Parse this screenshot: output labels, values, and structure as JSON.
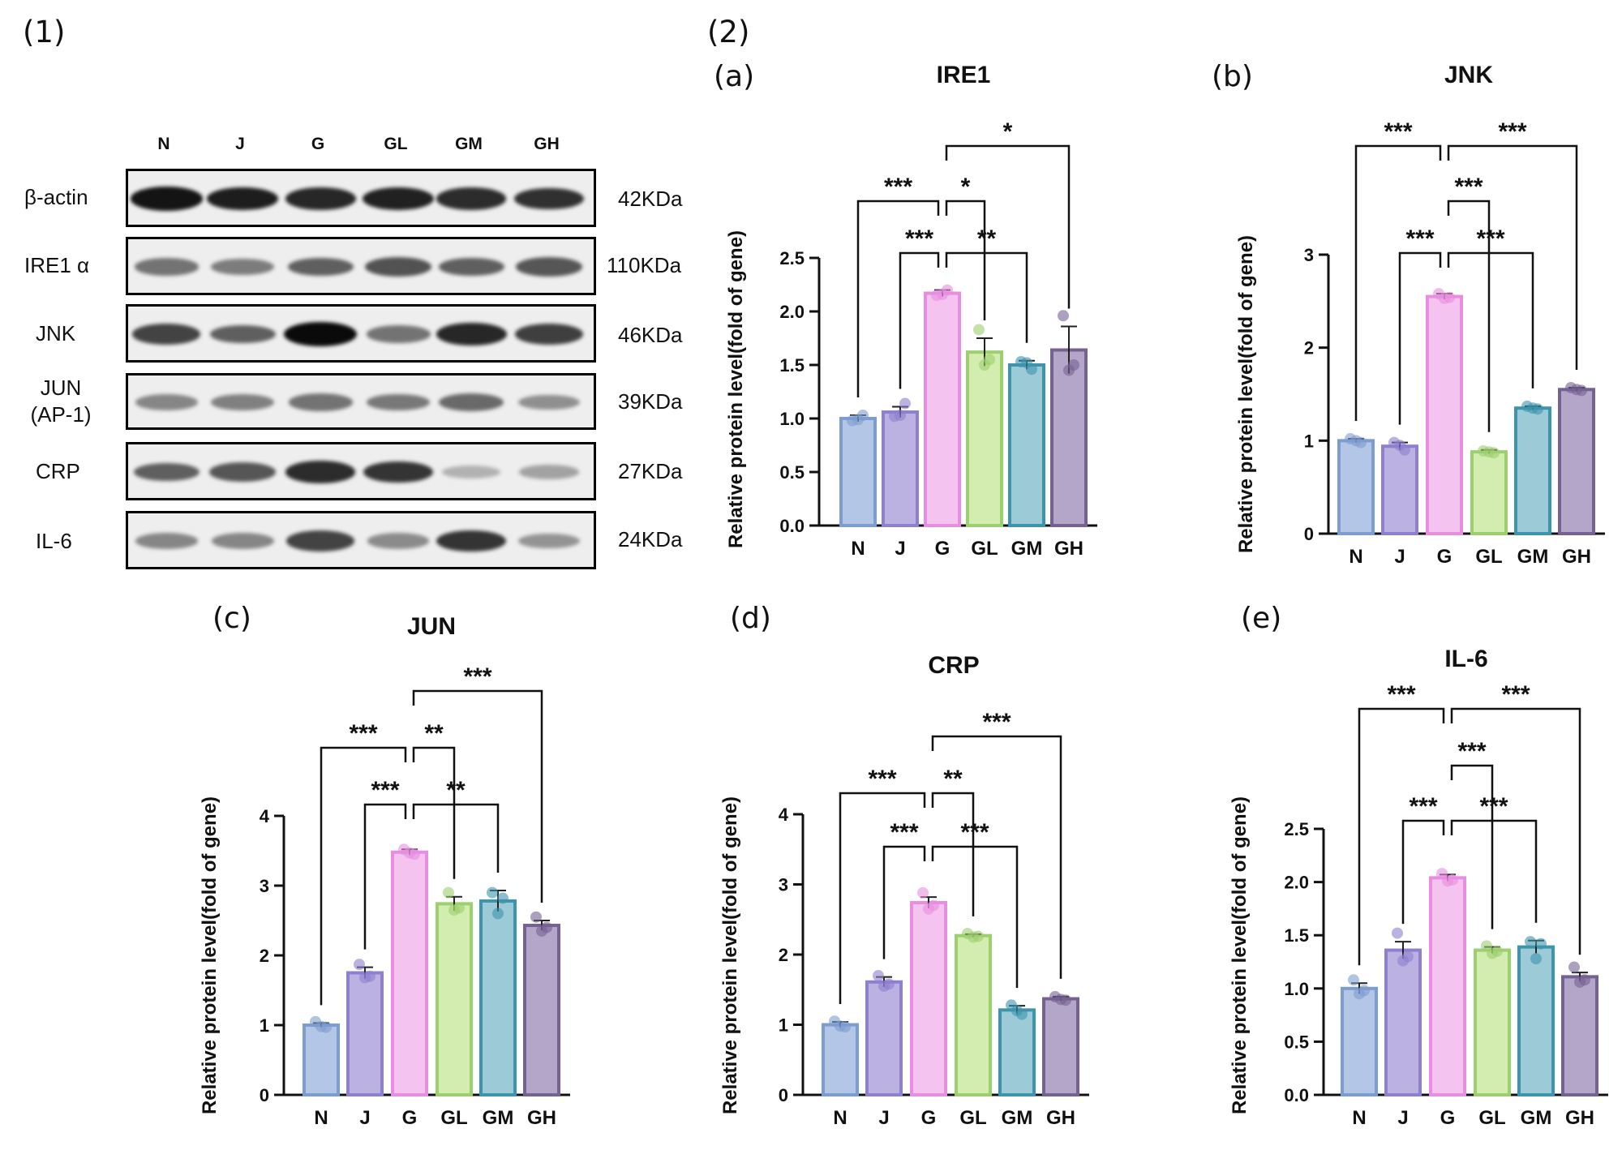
{
  "figure_labels": {
    "part1": "(1)",
    "part2": "(2)"
  },
  "western_blot": {
    "lanes": [
      "N",
      "J",
      "G",
      "GL",
      "GM",
      "GH"
    ],
    "rows": [
      {
        "label": "β-actin",
        "kda": "42KDa",
        "intensity": [
          0.95,
          0.9,
          0.85,
          0.88,
          0.82,
          0.8
        ]
      },
      {
        "label": "IRE1 α",
        "kda": "110KDa",
        "intensity": [
          0.45,
          0.4,
          0.55,
          0.62,
          0.55,
          0.6
        ]
      },
      {
        "label": "JNK",
        "kda": "46KDa",
        "intensity": [
          0.7,
          0.55,
          1.0,
          0.45,
          0.85,
          0.72
        ]
      },
      {
        "label": "JUN\n(AP-1)",
        "kda": "39KDa",
        "intensity": [
          0.35,
          0.38,
          0.45,
          0.42,
          0.5,
          0.3
        ]
      },
      {
        "label": "CRP",
        "kda": "27KDa",
        "intensity": [
          0.55,
          0.6,
          0.82,
          0.78,
          0.12,
          0.2
        ]
      },
      {
        "label": "IL-6",
        "kda": "24KDa",
        "intensity": [
          0.35,
          0.35,
          0.7,
          0.32,
          0.78,
          0.28
        ]
      }
    ]
  },
  "chart_data": [
    {
      "panel": "(a)",
      "type": "bar",
      "title": "IRE1",
      "ylabel": "Relative protein level(fold of gene)",
      "categories": [
        "N",
        "J",
        "G",
        "GL",
        "GM",
        "GH"
      ],
      "values": [
        1.0,
        1.06,
        2.17,
        1.62,
        1.5,
        1.64
      ],
      "errors": [
        0.03,
        0.05,
        0.03,
        0.13,
        0.04,
        0.22
      ],
      "points": [
        [
          0.98,
          1.03,
          0.99
        ],
        [
          1.02,
          1.14,
          1.03
        ],
        [
          2.15,
          2.2,
          2.16
        ],
        [
          1.83,
          1.55,
          1.5
        ],
        [
          1.53,
          1.46,
          1.52
        ],
        [
          1.96,
          1.5,
          1.45
        ]
      ],
      "ylim": [
        0,
        2.5
      ],
      "yticks": [
        "0.0",
        "0.5",
        "1.0",
        "1.5",
        "2.0",
        "2.5"
      ],
      "significance": [
        {
          "from": 2,
          "to": 5,
          "label": "*"
        },
        {
          "from": 0,
          "to": 2,
          "label": "***"
        },
        {
          "from": 2,
          "to": 3,
          "label": "*"
        },
        {
          "from": 1,
          "to": 2,
          "label": "***"
        },
        {
          "from": 2,
          "to": 4,
          "label": "**"
        }
      ],
      "colors": [
        "#b3c6e6",
        "#bcb2e2",
        "#f4c3ef",
        "#d3edb0",
        "#9ccad6",
        "#b3a6c9"
      ],
      "edges": [
        "#7d9ccf",
        "#8f7fcf",
        "#e78ee0",
        "#9ccf6e",
        "#3d94ad",
        "#766193"
      ]
    },
    {
      "panel": "(b)",
      "type": "bar",
      "title": "JNK",
      "ylabel": "Relative protein level(fold of gene)",
      "categories": [
        "N",
        "J",
        "G",
        "GL",
        "GM",
        "GH"
      ],
      "values": [
        1.0,
        0.94,
        2.55,
        0.88,
        1.35,
        1.55
      ],
      "errors": [
        0.02,
        0.04,
        0.03,
        0.02,
        0.02,
        0.02
      ],
      "points": [
        [
          1.02,
          0.98,
          1.0
        ],
        [
          0.98,
          0.9,
          0.95
        ],
        [
          2.58,
          2.54,
          2.53
        ],
        [
          0.89,
          0.87,
          0.88
        ],
        [
          1.37,
          1.34,
          1.35
        ],
        [
          1.57,
          1.54,
          1.55
        ]
      ],
      "ylim": [
        0,
        3
      ],
      "yticks": [
        "0",
        "1",
        "2",
        "3"
      ],
      "significance": [
        {
          "from": 0,
          "to": 2,
          "label": "***"
        },
        {
          "from": 2,
          "to": 5,
          "label": "***"
        },
        {
          "from": 2,
          "to": 3,
          "label": "***"
        },
        {
          "from": 1,
          "to": 2,
          "label": "***"
        },
        {
          "from": 2,
          "to": 4,
          "label": "***"
        }
      ],
      "colors": [
        "#b3c6e6",
        "#bcb2e2",
        "#f4c3ef",
        "#d3edb0",
        "#9ccad6",
        "#b3a6c9"
      ],
      "edges": [
        "#7d9ccf",
        "#8f7fcf",
        "#e78ee0",
        "#9ccf6e",
        "#3d94ad",
        "#766193"
      ]
    },
    {
      "panel": "(c)",
      "type": "bar",
      "title": "JUN",
      "ylabel": "Relative protein level(fold of gene)",
      "categories": [
        "N",
        "J",
        "G",
        "GL",
        "GM",
        "GH"
      ],
      "values": [
        1.0,
        1.75,
        3.48,
        2.74,
        2.78,
        2.43
      ],
      "errors": [
        0.03,
        0.08,
        0.04,
        0.1,
        0.15,
        0.07
      ],
      "points": [
        [
          1.05,
          0.97,
          0.98
        ],
        [
          1.87,
          1.7,
          1.68
        ],
        [
          3.52,
          3.45,
          3.47
        ],
        [
          2.9,
          2.68,
          2.65
        ],
        [
          2.9,
          2.82,
          2.6
        ],
        [
          2.55,
          2.4,
          2.35
        ]
      ],
      "ylim": [
        0,
        4
      ],
      "yticks": [
        "0",
        "1",
        "2",
        "3",
        "4"
      ],
      "significance": [
        {
          "from": 2,
          "to": 5,
          "label": "***"
        },
        {
          "from": 0,
          "to": 2,
          "label": "***"
        },
        {
          "from": 2,
          "to": 3,
          "label": "**"
        },
        {
          "from": 1,
          "to": 2,
          "label": "***"
        },
        {
          "from": 2,
          "to": 4,
          "label": "**"
        }
      ],
      "colors": [
        "#b3c6e6",
        "#bcb2e2",
        "#f4c3ef",
        "#d3edb0",
        "#9ccad6",
        "#b3a6c9"
      ],
      "edges": [
        "#7d9ccf",
        "#8f7fcf",
        "#e78ee0",
        "#9ccf6e",
        "#3d94ad",
        "#766193"
      ]
    },
    {
      "panel": "(d)",
      "type": "bar",
      "title": "CRP",
      "ylabel": "Relative protein level(fold of gene)",
      "categories": [
        "N",
        "J",
        "G",
        "GL",
        "GM",
        "GH"
      ],
      "values": [
        1.0,
        1.61,
        2.74,
        2.27,
        1.21,
        1.37
      ],
      "errors": [
        0.04,
        0.07,
        0.08,
        0.02,
        0.06,
        0.03
      ],
      "points": [
        [
          1.05,
          0.97,
          0.98
        ],
        [
          1.7,
          1.58,
          1.55
        ],
        [
          2.88,
          2.7,
          2.65
        ],
        [
          2.3,
          2.26,
          2.25
        ],
        [
          1.28,
          1.15,
          1.2
        ],
        [
          1.4,
          1.35,
          1.36
        ]
      ],
      "ylim": [
        0,
        4
      ],
      "yticks": [
        "0",
        "1",
        "2",
        "3",
        "4"
      ],
      "significance": [
        {
          "from": 2,
          "to": 5,
          "label": "***"
        },
        {
          "from": 0,
          "to": 2,
          "label": "***"
        },
        {
          "from": 2,
          "to": 3,
          "label": "**"
        },
        {
          "from": 1,
          "to": 2,
          "label": "***"
        },
        {
          "from": 2,
          "to": 4,
          "label": "***"
        }
      ],
      "colors": [
        "#b3c6e6",
        "#bcb2e2",
        "#f4c3ef",
        "#d3edb0",
        "#9ccad6",
        "#b3a6c9"
      ],
      "edges": [
        "#7d9ccf",
        "#8f7fcf",
        "#e78ee0",
        "#9ccf6e",
        "#3d94ad",
        "#766193"
      ]
    },
    {
      "panel": "(e)",
      "type": "bar",
      "title": "IL-6",
      "ylabel": "Relative protein level(fold of gene)",
      "categories": [
        "N",
        "J",
        "G",
        "GL",
        "GM",
        "GH"
      ],
      "values": [
        1.0,
        1.36,
        2.04,
        1.36,
        1.39,
        1.11
      ],
      "errors": [
        0.05,
        0.08,
        0.03,
        0.03,
        0.06,
        0.04
      ],
      "points": [
        [
          1.08,
          0.98,
          0.95
        ],
        [
          1.52,
          1.3,
          1.26
        ],
        [
          2.08,
          2.02,
          2.01
        ],
        [
          1.4,
          1.35,
          1.33
        ],
        [
          1.44,
          1.42,
          1.28
        ],
        [
          1.2,
          1.08,
          1.06
        ]
      ],
      "ylim": [
        0,
        2.5
      ],
      "yticks": [
        "0.0",
        "0.5",
        "1.0",
        "1.5",
        "2.0",
        "2.5"
      ],
      "significance": [
        {
          "from": 0,
          "to": 2,
          "label": "***"
        },
        {
          "from": 2,
          "to": 5,
          "label": "***"
        },
        {
          "from": 2,
          "to": 3,
          "label": "***"
        },
        {
          "from": 1,
          "to": 2,
          "label": "***"
        },
        {
          "from": 2,
          "to": 4,
          "label": "***"
        }
      ],
      "colors": [
        "#b3c6e6",
        "#bcb2e2",
        "#f4c3ef",
        "#d3edb0",
        "#9ccad6",
        "#b3a6c9"
      ],
      "edges": [
        "#7d9ccf",
        "#8f7fcf",
        "#e78ee0",
        "#9ccf6e",
        "#3d94ad",
        "#766193"
      ]
    }
  ]
}
